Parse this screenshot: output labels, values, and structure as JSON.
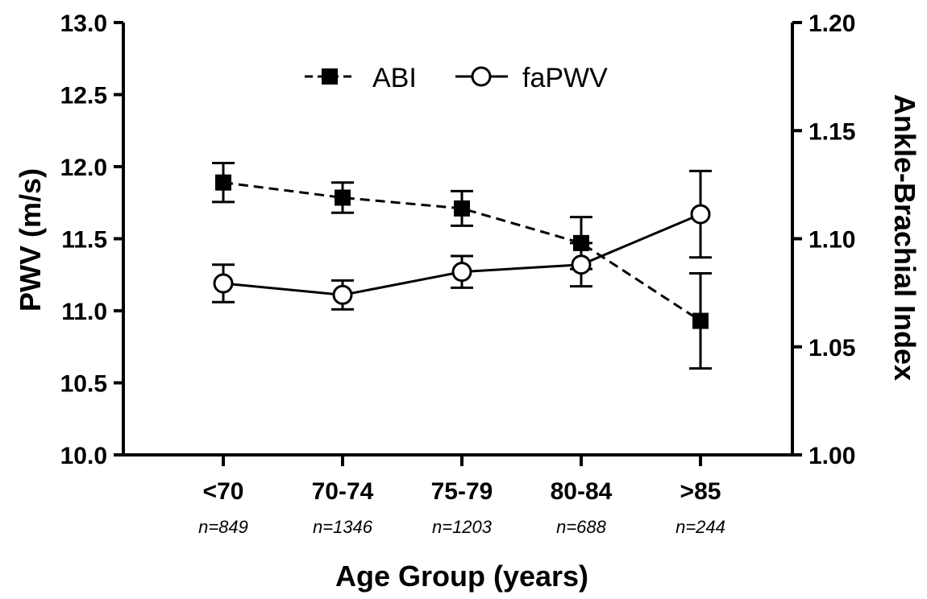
{
  "chart_data": {
    "type": "line",
    "categories": [
      "<70",
      "70-74",
      "75-79",
      "80-84",
      ">85"
    ],
    "category_sublabels": [
      "n=849",
      "n=1346",
      "n=1203",
      "n=688",
      "n=244"
    ],
    "xlabel": "Age Group (years)",
    "ylabel_left": "PWV (m/s)",
    "ylabel_right": "Ankle-Brachial Index",
    "ylim_left": [
      10.0,
      13.0
    ],
    "yticks_left": [
      "10.0",
      "10.5",
      "11.0",
      "11.5",
      "12.0",
      "12.5",
      "13.0"
    ],
    "ylim_right": [
      1.0,
      1.2
    ],
    "yticks_right": [
      "1.00",
      "1.05",
      "1.10",
      "1.15",
      "1.20"
    ],
    "legend_position": "top-center",
    "grid": false,
    "series": [
      {
        "name": "ABI",
        "axis": "right",
        "marker": "filled-square",
        "line_style": "dashed",
        "values": [
          1.126,
          1.119,
          1.114,
          1.098,
          1.062
        ],
        "error": [
          0.009,
          0.007,
          0.008,
          0.012,
          0.022
        ]
      },
      {
        "name": "faPWV",
        "axis": "left",
        "marker": "open-circle",
        "line_style": "solid",
        "values": [
          11.19,
          11.11,
          11.27,
          11.32,
          11.67
        ],
        "error": [
          0.13,
          0.1,
          0.11,
          0.15,
          0.3
        ]
      }
    ]
  }
}
